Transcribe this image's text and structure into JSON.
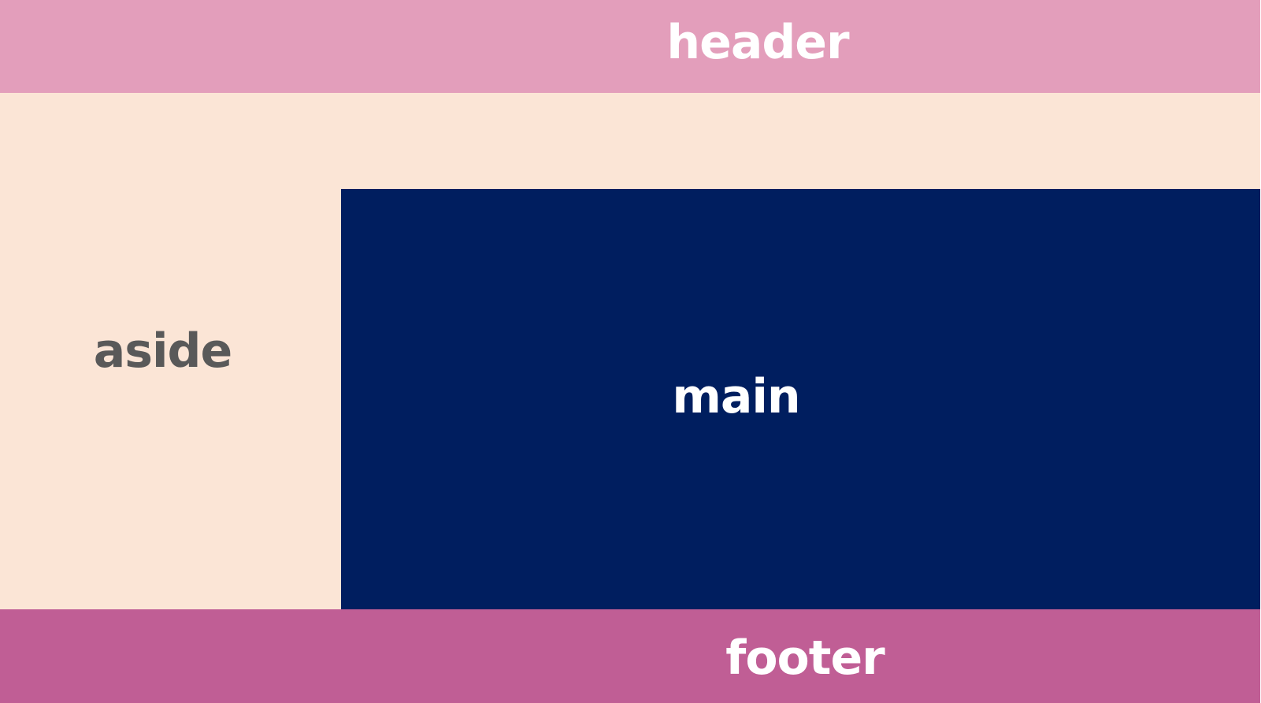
{
  "regions": {
    "header": {
      "label": "header",
      "color": "#e39ebb"
    },
    "aside": {
      "label": "aside",
      "color": "#fbe5d6"
    },
    "main": {
      "label": "main",
      "color": "#001e5f"
    },
    "footer": {
      "label": "footer",
      "color": "#c05e95"
    }
  }
}
